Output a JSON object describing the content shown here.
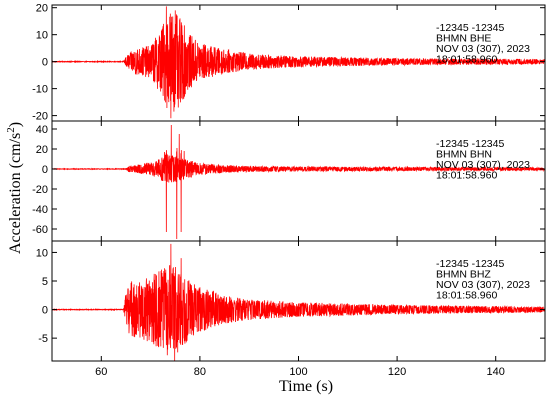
{
  "chart_data": {
    "type": "line",
    "xlabel": "Time (s)",
    "ylabel": "Acceleration (cm/s",
    "ylabel_superscript": "2",
    "ylabel_suffix": ")",
    "xlim": [
      50,
      150
    ],
    "x_ticks": [
      60,
      80,
      100,
      120,
      140
    ],
    "x_tick_labels": [
      "60",
      "80",
      "100",
      "120",
      "140"
    ],
    "line_color": "#ff0000",
    "grid": false,
    "panels": [
      {
        "channel": "BHE",
        "annotation": [
          "-12345  -12345",
          "BHMN  BHE",
          "NOV 03 (307), 2023",
          "18:01:58.960"
        ],
        "ylim": [
          -22,
          21
        ],
        "y_ticks": [
          20,
          10,
          0,
          -10,
          -20
        ],
        "y_tick_labels": [
          "20",
          "10",
          "0",
          "-10",
          "-20"
        ],
        "envelope": [
          [
            50,
            0.12
          ],
          [
            64.5,
            0.12
          ],
          [
            65,
            2
          ],
          [
            67,
            5
          ],
          [
            70,
            6
          ],
          [
            72,
            12
          ],
          [
            74,
            20
          ],
          [
            76,
            16
          ],
          [
            78,
            10
          ],
          [
            80,
            7
          ],
          [
            85,
            4.5
          ],
          [
            90,
            3
          ],
          [
            100,
            2
          ],
          [
            120,
            1.3
          ],
          [
            150,
            1
          ]
        ],
        "peaks": [
          [
            73.2,
            20.5
          ],
          [
            74.1,
            -21
          ],
          [
            75.0,
            19
          ],
          [
            75.6,
            -17
          ],
          [
            73.7,
            -15
          ],
          [
            72.6,
            14
          ]
        ]
      },
      {
        "channel": "BHN",
        "annotation": [
          "-12345  -12345",
          "BHMN  BHN",
          "NOV 03 (307), 2023",
          "18:01:58.960"
        ],
        "ylim": [
          -72,
          48
        ],
        "y_ticks": [
          40,
          20,
          0,
          -20,
          -40,
          -60
        ],
        "y_tick_labels": [
          "40",
          "20",
          "0",
          "-20",
          "-40",
          "-60"
        ],
        "envelope": [
          [
            50,
            0.3
          ],
          [
            65,
            0.3
          ],
          [
            65.5,
            3
          ],
          [
            68,
            5
          ],
          [
            71,
            8
          ],
          [
            73,
            15
          ],
          [
            75,
            14
          ],
          [
            77,
            10
          ],
          [
            80,
            6
          ],
          [
            85,
            4
          ],
          [
            90,
            3
          ],
          [
            100,
            2.5
          ],
          [
            120,
            2
          ],
          [
            150,
            1.5
          ]
        ],
        "peaks": [
          [
            73.2,
            -63
          ],
          [
            74.2,
            44
          ],
          [
            75.3,
            -70
          ],
          [
            76.2,
            -63
          ],
          [
            75.8,
            35
          ],
          [
            76.8,
            18
          ],
          [
            72.8,
            17
          ]
        ]
      },
      {
        "channel": "BHZ",
        "annotation": [
          "-12345  -12345",
          "BHMN  BHZ",
          "NOV 03 (307), 2023",
          "18:01:58.960"
        ],
        "ylim": [
          -9,
          12
        ],
        "y_ticks": [
          10,
          5,
          0,
          -5
        ],
        "y_tick_labels": [
          "10",
          "5",
          "0",
          "-5"
        ],
        "envelope": [
          [
            50,
            0.06
          ],
          [
            64.5,
            0.06
          ],
          [
            65,
            3
          ],
          [
            66,
            5
          ],
          [
            68,
            5
          ],
          [
            70,
            6
          ],
          [
            72,
            7
          ],
          [
            74,
            8
          ],
          [
            76,
            7
          ],
          [
            78,
            5
          ],
          [
            80,
            4
          ],
          [
            85,
            2.5
          ],
          [
            90,
            1.8
          ],
          [
            100,
            1.3
          ],
          [
            120,
            0.8
          ],
          [
            150,
            0.5
          ]
        ],
        "peaks": [
          [
            74.1,
            11.5
          ],
          [
            74.9,
            -9
          ],
          [
            73.4,
            -8
          ],
          [
            76.2,
            9
          ],
          [
            72.2,
            7
          ],
          [
            75.5,
            -7.5
          ]
        ]
      }
    ]
  }
}
